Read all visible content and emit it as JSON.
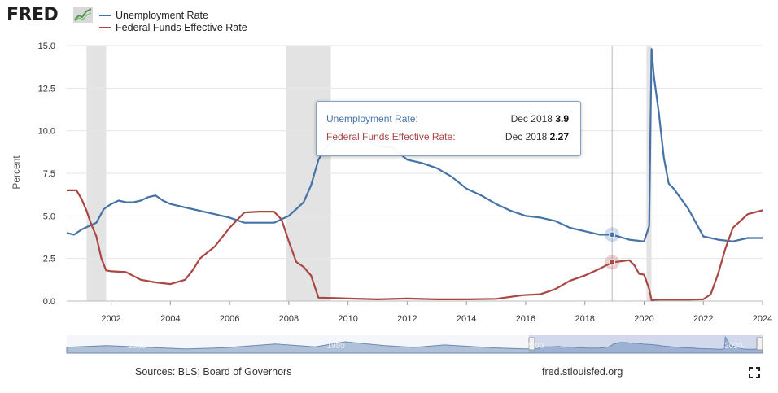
{
  "header": {
    "logo_text": "FRED",
    "logo_mark": "fred-chart-logo-icon",
    "legend": [
      {
        "label": "Unemployment Rate",
        "color": "#4572a7"
      },
      {
        "label": "Federal Funds Effective Rate",
        "color": "#aa4643"
      }
    ]
  },
  "tooltip": {
    "rows": [
      {
        "label": "Unemployment Rate:",
        "date": "Dec 2018",
        "value": "3.9",
        "color": "#4572a7"
      },
      {
        "label": "Federal Funds Effective Rate:",
        "date": "Dec 2018",
        "value": "2.27",
        "color": "#aa4643"
      }
    ]
  },
  "footer": {
    "sources": "Sources: BLS; Board of Governors",
    "site": "fred.stlouisfed.org",
    "fullscreen_icon": "fullscreen-icon"
  },
  "chart_data": {
    "type": "line",
    "ylabel": "Percent",
    "ylim": [
      0,
      15
    ],
    "yticks": [
      "0.0",
      "2.5",
      "5.0",
      "7.5",
      "10.0",
      "12.5",
      "15.0"
    ],
    "xlim": [
      2000.5,
      2024.0
    ],
    "xticks": [
      "2002",
      "2004",
      "2006",
      "2008",
      "2010",
      "2012",
      "2014",
      "2016",
      "2018",
      "2020",
      "2022",
      "2024"
    ],
    "grid": true,
    "legend_position": "top-left",
    "recessions": [
      [
        2001.17,
        2001.83
      ],
      [
        2007.92,
        2009.42
      ],
      [
        2020.08,
        2020.25
      ]
    ],
    "crosshair_x": 2018.92,
    "navigator_labels": [
      "1960",
      "1980",
      "2000",
      "2020"
    ],
    "series": [
      {
        "name": "Unemployment Rate",
        "color": "#4572a7",
        "x": [
          2000.5,
          2000.75,
          2001.0,
          2001.25,
          2001.5,
          2001.75,
          2002.0,
          2002.25,
          2002.5,
          2002.75,
          2003.0,
          2003.25,
          2003.5,
          2003.75,
          2004.0,
          2004.25,
          2004.5,
          2004.75,
          2005.0,
          2005.5,
          2006.0,
          2006.5,
          2007.0,
          2007.5,
          2008.0,
          2008.25,
          2008.5,
          2008.75,
          2009.0,
          2009.25,
          2009.5,
          2009.75,
          2010.0,
          2010.5,
          2011.0,
          2011.5,
          2012.0,
          2012.5,
          2013.0,
          2013.5,
          2014.0,
          2014.5,
          2015.0,
          2015.5,
          2016.0,
          2016.5,
          2017.0,
          2017.5,
          2018.0,
          2018.5,
          2018.92,
          2019.5,
          2020.0,
          2020.17,
          2020.25,
          2020.33,
          2020.5,
          2020.67,
          2020.83,
          2021.0,
          2021.25,
          2021.5,
          2021.75,
          2022.0,
          2022.5,
          2023.0,
          2023.5,
          2024.0
        ],
        "y": [
          4.0,
          3.9,
          4.2,
          4.4,
          4.6,
          5.4,
          5.7,
          5.9,
          5.8,
          5.8,
          5.9,
          6.1,
          6.2,
          5.9,
          5.7,
          5.6,
          5.5,
          5.4,
          5.3,
          5.1,
          4.9,
          4.6,
          4.6,
          4.6,
          5.0,
          5.4,
          5.8,
          6.8,
          8.3,
          9.0,
          9.5,
          9.8,
          9.8,
          9.5,
          9.1,
          9.0,
          8.3,
          8.1,
          7.8,
          7.3,
          6.6,
          6.2,
          5.7,
          5.3,
          5.0,
          4.9,
          4.7,
          4.3,
          4.1,
          3.9,
          3.9,
          3.6,
          3.5,
          4.4,
          14.8,
          13.2,
          11.0,
          8.4,
          6.9,
          6.6,
          6.0,
          5.4,
          4.6,
          3.8,
          3.6,
          3.5,
          3.7,
          3.7
        ]
      },
      {
        "name": "Federal Funds Effective Rate",
        "color": "#aa4643",
        "x": [
          2000.5,
          2000.83,
          2001.0,
          2001.17,
          2001.33,
          2001.5,
          2001.67,
          2001.83,
          2002.0,
          2002.5,
          2003.0,
          2003.5,
          2004.0,
          2004.5,
          2004.75,
          2005.0,
          2005.5,
          2006.0,
          2006.5,
          2007.0,
          2007.5,
          2007.75,
          2008.0,
          2008.25,
          2008.5,
          2008.75,
          2009.0,
          2009.5,
          2010.0,
          2011.0,
          2012.0,
          2013.0,
          2014.0,
          2015.0,
          2015.92,
          2016.5,
          2017.0,
          2017.5,
          2018.0,
          2018.5,
          2018.92,
          2019.5,
          2019.67,
          2019.83,
          2020.0,
          2020.17,
          2020.25,
          2020.5,
          2021.0,
          2021.5,
          2022.0,
          2022.25,
          2022.5,
          2022.75,
          2023.0,
          2023.5,
          2024.0
        ],
        "y": [
          6.5,
          6.5,
          6.0,
          5.3,
          4.5,
          3.8,
          2.5,
          1.8,
          1.75,
          1.7,
          1.25,
          1.1,
          1.0,
          1.25,
          1.8,
          2.5,
          3.2,
          4.3,
          5.2,
          5.25,
          5.25,
          4.8,
          3.5,
          2.3,
          2.0,
          1.5,
          0.2,
          0.18,
          0.15,
          0.1,
          0.15,
          0.1,
          0.1,
          0.13,
          0.35,
          0.4,
          0.7,
          1.2,
          1.5,
          1.9,
          2.27,
          2.4,
          2.1,
          1.6,
          1.55,
          0.7,
          0.05,
          0.09,
          0.08,
          0.08,
          0.1,
          0.4,
          1.6,
          3.1,
          4.3,
          5.1,
          5.33
        ]
      }
    ]
  }
}
